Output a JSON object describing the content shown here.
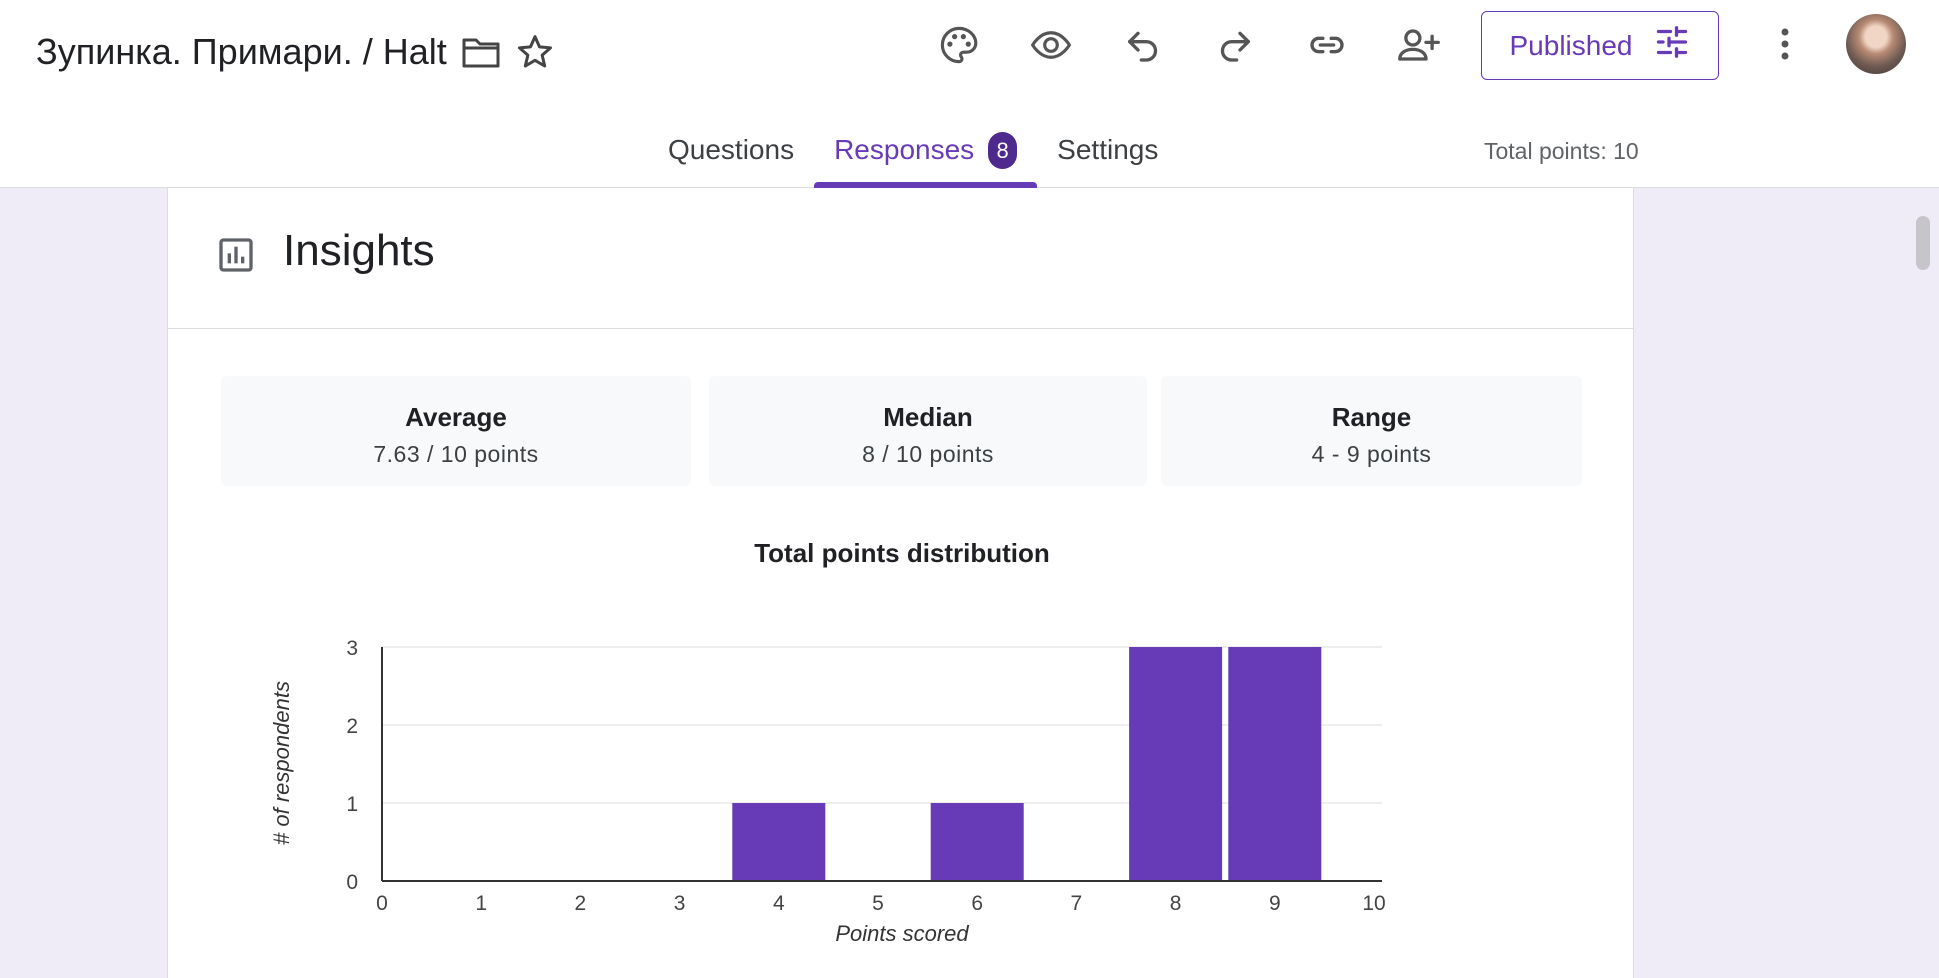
{
  "header": {
    "title": "Зупинка. Примари. /  Halt",
    "toolbar_icons": [
      "palette-icon",
      "preview-eye-icon",
      "undo-icon",
      "redo-icon",
      "link-icon",
      "add-collaborator-icon"
    ],
    "published_label": "Published",
    "tabs": [
      {
        "label": "Questions",
        "active": false
      },
      {
        "label": "Responses",
        "active": true,
        "badge": "8"
      },
      {
        "label": "Settings",
        "active": false
      }
    ],
    "total_points": "Total points: 10",
    "accent_color": "#673ab7"
  },
  "insights": {
    "title": "Insights",
    "stats": [
      {
        "label": "Average",
        "value": "7.63 / 10 points"
      },
      {
        "label": "Median",
        "value": "8 / 10 points"
      },
      {
        "label": "Range",
        "value": "4 - 9 points"
      }
    ]
  },
  "chart_data": {
    "type": "bar",
    "title": "Total points distribution",
    "xlabel": "Points scored",
    "ylabel": "# of respondents",
    "categories": [
      "0",
      "1",
      "2",
      "3",
      "4",
      "5",
      "6",
      "7",
      "8",
      "9",
      "10"
    ],
    "values": [
      0,
      0,
      0,
      0,
      1,
      0,
      1,
      0,
      3,
      3,
      0
    ],
    "ylim": [
      0,
      3
    ],
    "yticks": [
      "0",
      "1",
      "2",
      "3"
    ],
    "grid": true,
    "bar_color": "#673ab7"
  }
}
